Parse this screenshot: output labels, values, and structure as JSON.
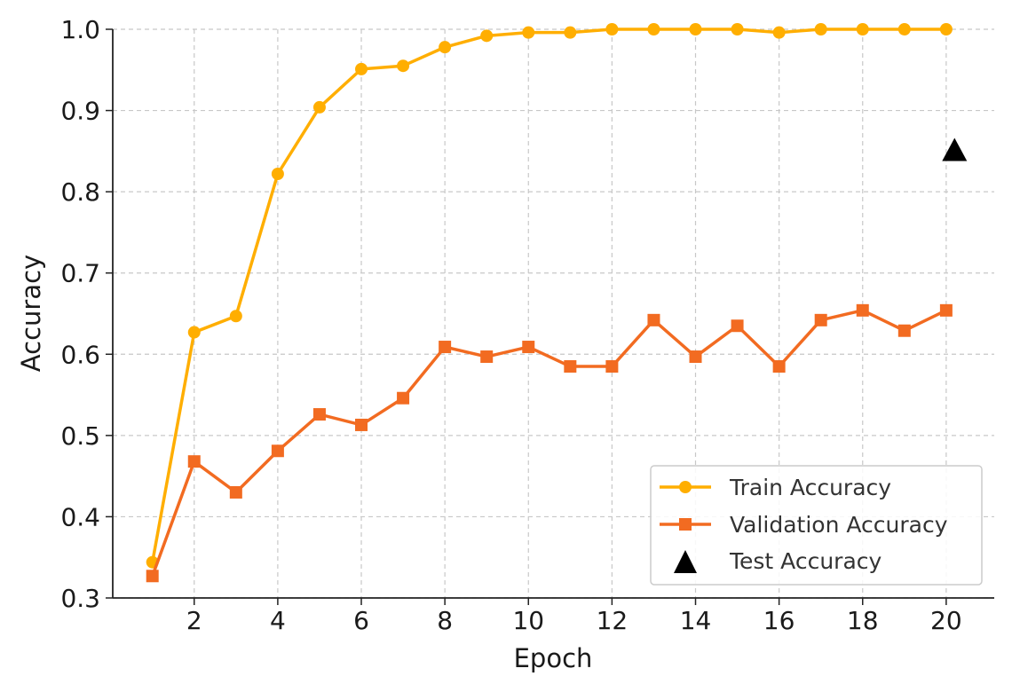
{
  "chart_data": {
    "type": "line",
    "title": "",
    "xlabel": "Epoch",
    "ylabel": "Accuracy",
    "xlim": [
      0.05,
      21.15
    ],
    "ylim": [
      0.3,
      1.0
    ],
    "xticks": [
      2,
      4,
      6,
      8,
      10,
      12,
      14,
      16,
      18,
      20
    ],
    "xtick_labels": [
      "2",
      "4",
      "6",
      "8",
      "10",
      "12",
      "14",
      "16",
      "18",
      "20"
    ],
    "yticks": [
      0.3,
      0.4,
      0.5,
      0.6,
      0.7,
      0.8,
      0.9,
      1.0
    ],
    "ytick_labels": [
      "0.3",
      "0.4",
      "0.5",
      "0.6",
      "0.7",
      "0.8",
      "0.9",
      "1.0"
    ],
    "grid": true,
    "legend_position": "lower-right",
    "x": [
      1,
      2,
      3,
      4,
      5,
      6,
      7,
      8,
      9,
      10,
      11,
      12,
      13,
      14,
      15,
      16,
      17,
      18,
      19,
      20
    ],
    "series": [
      {
        "name": "Train Accuracy",
        "color": "#FFAE00",
        "marker": "circle",
        "values": [
          0.344,
          0.627,
          0.647,
          0.822,
          0.904,
          0.951,
          0.955,
          0.978,
          0.992,
          0.996,
          0.996,
          1.0,
          1.0,
          1.0,
          1.0,
          0.996,
          1.0,
          1.0,
          1.0,
          1.0
        ]
      },
      {
        "name": "Validation Accuracy",
        "color": "#F26B21",
        "marker": "square",
        "values": [
          0.327,
          0.468,
          0.43,
          0.481,
          0.526,
          0.513,
          0.546,
          0.609,
          0.597,
          0.609,
          0.585,
          0.585,
          0.642,
          0.597,
          0.635,
          0.585,
          0.642,
          0.654,
          0.629,
          0.654
        ]
      }
    ],
    "test_point": {
      "name": "Test Accuracy",
      "color": "#000000",
      "marker": "triangle",
      "x": 20.2,
      "y": 0.851
    }
  }
}
